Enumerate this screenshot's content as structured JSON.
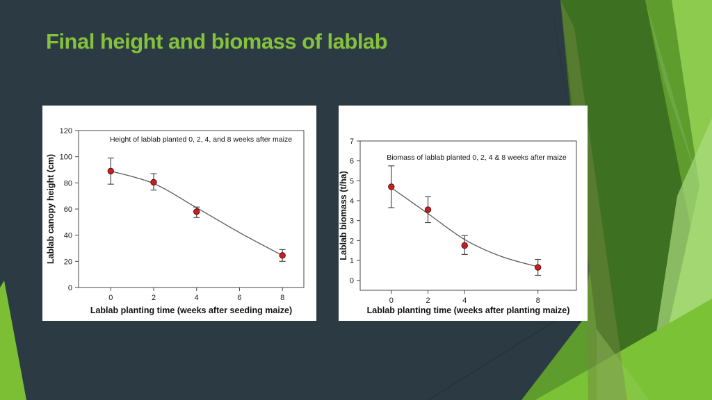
{
  "slide": {
    "title": "Final height and biomass of lablab",
    "background_color": "#2c3b43",
    "title_color": "#84c13d",
    "decor_greens": [
      "#3c6e20",
      "#5d9c2d",
      "#7cc236",
      "#8ccb4e",
      "#abdc80"
    ]
  },
  "chart_data": [
    {
      "type": "scatter",
      "title": "Height of lablab planted 0, 2, 4, and 8 weeks after maize",
      "xlabel": "Lablab planting time (weeks after seeding maize)",
      "ylabel": "Lablab canopy height (cm)",
      "x": [
        0,
        2,
        4,
        8
      ],
      "y": [
        89,
        80.5,
        58,
        24.5
      ],
      "y_err_low": [
        79,
        74.5,
        53.5,
        20
      ],
      "y_err_high": [
        99,
        87,
        61.5,
        29
      ],
      "fit_curve": [
        [
          0,
          89
        ],
        [
          2,
          79.5
        ],
        [
          4,
          61
        ],
        [
          6,
          42
        ],
        [
          8,
          24.5
        ]
      ],
      "xticks": [
        0,
        2,
        4,
        6,
        8
      ],
      "yticks": [
        0,
        20,
        40,
        60,
        80,
        100,
        120
      ],
      "xlim": [
        -1.5,
        9
      ],
      "ylim": [
        0,
        120
      ],
      "marker_color": "#c42020",
      "errorbar_color": "#4a4a4a",
      "line_color": "#5a5a5a",
      "grid": false,
      "legend": "none"
    },
    {
      "type": "scatter",
      "title": "Biomass of lablab planted 0, 2, 4 & 8 weeks after maize",
      "xlabel": "Lablab planting time (weeks after planting maize)",
      "ylabel": "Lablab biomass (t/ha)",
      "x": [
        0,
        2,
        4,
        8
      ],
      "y": [
        4.7,
        3.55,
        1.75,
        0.65
      ],
      "y_err_low": [
        3.65,
        2.9,
        1.3,
        0.25
      ],
      "y_err_high": [
        5.75,
        4.2,
        2.25,
        1.05
      ],
      "fit_curve": [
        [
          0,
          4.65
        ],
        [
          2,
          3.35
        ],
        [
          4,
          2.05
        ],
        [
          6,
          1.2
        ],
        [
          8,
          0.68
        ]
      ],
      "xticks": [
        0,
        2,
        4,
        8
      ],
      "yticks": [
        0,
        1,
        2,
        3,
        4,
        5,
        6,
        7
      ],
      "xlim": [
        -1.7,
        10.1
      ],
      "ylim": [
        -0.5,
        7
      ],
      "marker_color": "#c42020",
      "errorbar_color": "#4a4a4a",
      "line_color": "#5a5a5a",
      "grid": false,
      "legend": "none"
    }
  ]
}
